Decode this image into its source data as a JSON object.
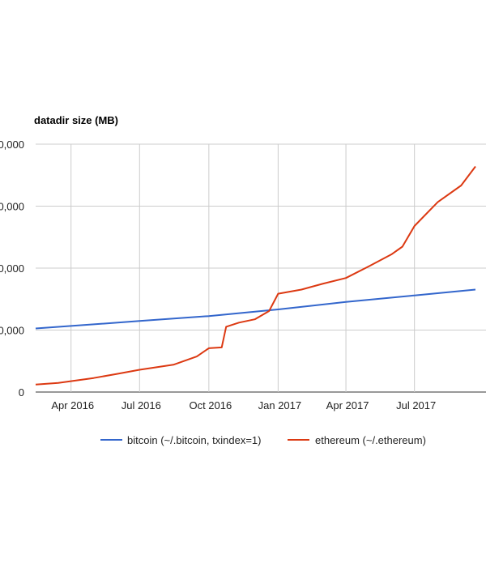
{
  "chart_data": {
    "type": "line",
    "title": "datadir size (MB)",
    "xlabel": "",
    "ylabel": "",
    "x_ticks": [
      "Apr 2016",
      "Jul 2016",
      "Oct 2016",
      "Jan 2017",
      "Apr 2017",
      "Jul 2017"
    ],
    "y_ticks": [
      "0",
      "0,000",
      "0,000",
      "0,000",
      "0,000"
    ],
    "legend": {
      "position": "bottom"
    },
    "grid": true,
    "series": [
      {
        "name": "bitcoin (~/.bitcoin, txindex=1)",
        "color": "#3366cc",
        "points": [
          [
            "2016-02-14",
            77
          ],
          [
            "2016-04-01",
            80
          ],
          [
            "2016-07-01",
            86
          ],
          [
            "2016-10-01",
            92
          ],
          [
            "2017-01-01",
            100
          ],
          [
            "2017-04-01",
            109
          ],
          [
            "2017-07-01",
            117
          ],
          [
            "2017-09-20",
            124
          ]
        ]
      },
      {
        "name": "ethereum (~/.ethereum)",
        "color": "#dc3912",
        "points": [
          [
            "2016-02-14",
            9
          ],
          [
            "2016-03-15",
            11
          ],
          [
            "2016-05-01",
            17
          ],
          [
            "2016-06-01",
            22
          ],
          [
            "2016-07-01",
            27
          ],
          [
            "2016-08-15",
            33
          ],
          [
            "2016-09-15",
            43
          ],
          [
            "2016-10-01",
            53
          ],
          [
            "2016-10-18",
            54
          ],
          [
            "2016-10-24",
            79
          ],
          [
            "2016-11-10",
            84
          ],
          [
            "2016-12-01",
            88
          ],
          [
            "2016-12-20",
            98
          ],
          [
            "2017-01-01",
            119
          ],
          [
            "2017-02-01",
            124
          ],
          [
            "2017-03-01",
            131
          ],
          [
            "2017-04-01",
            138
          ],
          [
            "2017-05-01",
            152
          ],
          [
            "2017-06-01",
            167
          ],
          [
            "2017-06-15",
            176
          ],
          [
            "2017-07-01",
            201
          ],
          [
            "2017-08-01",
            230
          ],
          [
            "2017-09-01",
            250
          ],
          [
            "2017-09-20",
            273
          ]
        ]
      }
    ]
  }
}
